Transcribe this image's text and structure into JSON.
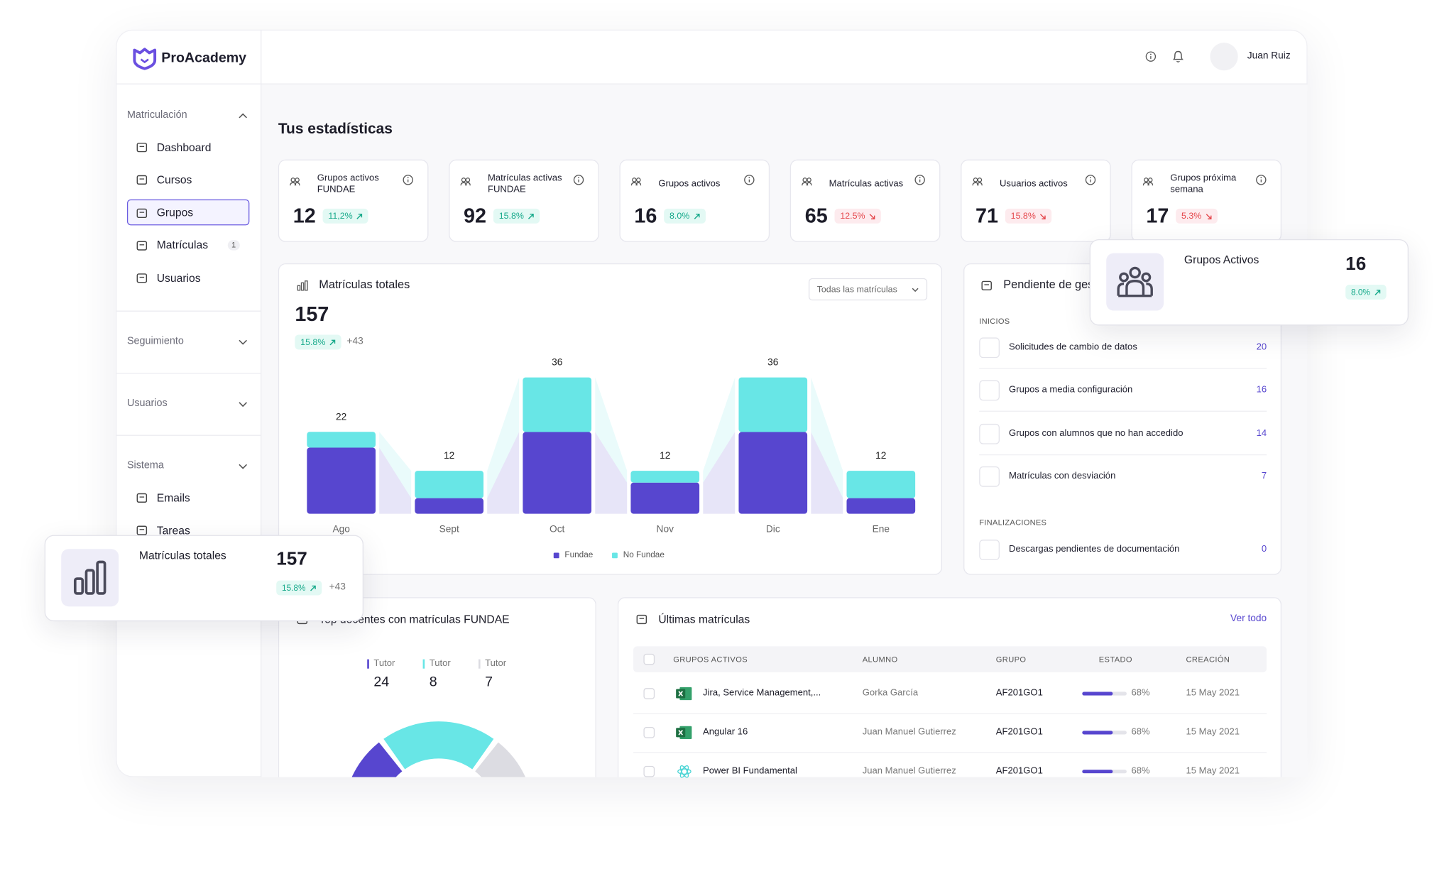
{
  "header": {
    "brand": "ProAcademy",
    "user": "Juan Ruiz"
  },
  "sidebar": {
    "sections": [
      {
        "title": "Matriculación",
        "expanded": true,
        "items": [
          {
            "label": "Dashboard"
          },
          {
            "label": "Cursos"
          },
          {
            "label": "Grupos",
            "active": true
          },
          {
            "label": "Matrículas",
            "badge": 1
          },
          {
            "label": "Usuarios"
          }
        ]
      },
      {
        "title": "Seguimiento",
        "expanded": false
      },
      {
        "title": "Usuarios",
        "expanded": false
      },
      {
        "title": "Sistema",
        "expanded": false,
        "items": [
          {
            "label": "Emails"
          },
          {
            "label": "Tareas"
          }
        ]
      }
    ]
  },
  "page_title": "Tus estadísticas",
  "stats": [
    {
      "label": "Grupos activos FUNDAE",
      "value": 12,
      "change": "11,2%",
      "trend": "up"
    },
    {
      "label": "Matrículas activas FUNDAE",
      "value": 92,
      "change": "15.8%",
      "trend": "up"
    },
    {
      "label": "Grupos activos",
      "value": 16,
      "change": "8.0%",
      "trend": "up"
    },
    {
      "label": "Matrículas activas",
      "value": 65,
      "change": "12.5%",
      "trend": "down"
    },
    {
      "label": "Usuarios activos",
      "value": 71,
      "change": "15.8%",
      "trend": "down"
    },
    {
      "label": "Grupos próxima semana",
      "value": 17,
      "change": "5.3%",
      "trend": "down"
    }
  ],
  "chart": {
    "type": "bar",
    "stacked": true,
    "title": "Matrículas totales",
    "total": 157,
    "change": "15.8%",
    "trend": "up",
    "delta": "+43",
    "filter": "Todas las matrículas",
    "categories": [
      "Ago",
      "Sept",
      "Oct",
      "Nov",
      "Dic",
      "Ene"
    ],
    "totals": [
      22,
      12,
      36,
      12,
      36,
      12
    ],
    "series": [
      {
        "name": "Fundae",
        "color": "#5746cf",
        "values": [
          17,
          4,
          21,
          8,
          21,
          4
        ]
      },
      {
        "name": "No Fundae",
        "color": "#68e6e6",
        "values": [
          5,
          8,
          15,
          4,
          15,
          8
        ]
      }
    ]
  },
  "pending": {
    "title": "Pendiente de gestión",
    "sections": [
      {
        "title": "INICIOS",
        "items": [
          {
            "label": "Solicitudes de cambio de datos",
            "count": 20
          },
          {
            "label": "Grupos a media configuración",
            "count": 16
          },
          {
            "label": "Grupos con alumnos que no han accedido",
            "count": 14
          },
          {
            "label": "Matrículas con desviación",
            "count": 7
          }
        ]
      },
      {
        "title": "FINALIZACIONES",
        "items": [
          {
            "label": "Descargas pendientes de documentación",
            "count": 0
          }
        ]
      }
    ]
  },
  "tutors": {
    "title": "Top docentes con matrículas FUNDAE",
    "series": [
      {
        "name": "Tutor",
        "value": 24,
        "color": "#5746cf"
      },
      {
        "name": "Tutor",
        "value": 8,
        "color": "#68e6e6"
      },
      {
        "name": "Tutor",
        "value": 7,
        "color": "#dcdce2"
      }
    ]
  },
  "latest": {
    "title": "Últimas matrículas",
    "link": "Ver todo",
    "columns": [
      "GRUPOS ACTIVOS",
      "ALUMNO",
      "GRUPO",
      "ESTADO",
      "CREACIÓN"
    ],
    "rows": [
      {
        "course": "Jira, Service Management,...",
        "student": "Gorka García",
        "group": "AF201GO1",
        "progress": {
          "value": 68,
          "label": "68%"
        },
        "date": "15 May 2021"
      },
      {
        "course": "Angular 16",
        "student": "Juan Manuel Gutierrez",
        "group": "AF201GO1",
        "progress": {
          "value": 68,
          "label": "68%"
        },
        "date": "15 May 2021"
      },
      {
        "course": "Power BI Fundamental",
        "student": "Juan Manuel Gutierrez",
        "group": "AF201GO1",
        "progress": {
          "value": 68,
          "label": "68%"
        },
        "date": "15 May 2021"
      }
    ]
  },
  "popups": {
    "groups": {
      "title": "Grupos Activos",
      "value": 16,
      "change": "8.0%",
      "trend": "up"
    },
    "enrollments": {
      "title": "Matrículas totales",
      "value": 157,
      "change": "15.8%",
      "trend": "up",
      "delta": "+43"
    }
  }
}
